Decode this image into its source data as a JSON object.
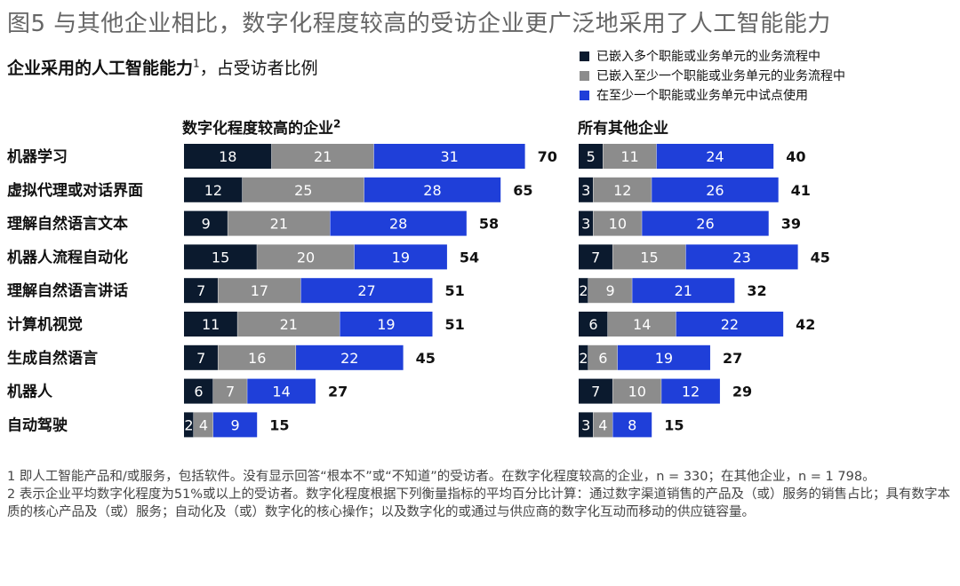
{
  "title": "图5 与其他企业相比，数字化程度较高的受访企业更广泛地采用了人工智能能力",
  "subtitle": {
    "main": "企业采用的人工智能能力",
    "sup": "1",
    "rest": "，占受访者比例"
  },
  "colors": {
    "embedded_multi": "#0b1a2e",
    "embedded_one": "#8c8c8c",
    "pilot": "#1f3fd9"
  },
  "chart_data": {
    "type": "bar",
    "orientation": "horizontal",
    "stacked": true,
    "categories": [
      "机器学习",
      "虚拟代理或对话界面",
      "理解自然语言文本",
      "机器人流程自动化",
      "理解自然语言讲话",
      "计算机视觉",
      "生成自然语言",
      "机器人",
      "自动驾驶"
    ],
    "legend": [
      "已嵌入多个职能或业务单元的业务流程中",
      "已嵌入至少一个职能或业务单元的业务流程中",
      "在至少一个职能或业务单元中试点使用"
    ],
    "panels": [
      {
        "title": "数字化程度较高的企业",
        "title_sup": "2",
        "series": [
          {
            "name": "已嵌入多个职能或业务单元的业务流程中",
            "values": [
              18,
              12,
              9,
              15,
              7,
              11,
              7,
              6,
              2
            ]
          },
          {
            "name": "已嵌入至少一个职能或业务单元的业务流程中",
            "values": [
              21,
              25,
              21,
              20,
              17,
              21,
              16,
              7,
              4
            ]
          },
          {
            "name": "在至少一个职能或业务单元中试点使用",
            "values": [
              31,
              28,
              28,
              19,
              27,
              19,
              22,
              14,
              9
            ]
          }
        ],
        "totals": [
          70,
          65,
          58,
          54,
          51,
          51,
          45,
          27,
          15
        ]
      },
      {
        "title": "所有其他企业",
        "title_sup": "",
        "series": [
          {
            "name": "已嵌入多个职能或业务单元的业务流程中",
            "values": [
              5,
              3,
              3,
              7,
              2,
              6,
              2,
              7,
              3
            ]
          },
          {
            "name": "已嵌入至少一个职能或业务单元的业务流程中",
            "values": [
              11,
              12,
              10,
              15,
              9,
              14,
              6,
              10,
              4
            ]
          },
          {
            "name": "在至少一个职能或业务单元中试点使用",
            "values": [
              24,
              26,
              26,
              23,
              21,
              22,
              19,
              12,
              8
            ]
          }
        ],
        "totals": [
          40,
          41,
          39,
          45,
          32,
          42,
          27,
          29,
          15
        ]
      }
    ]
  },
  "footnotes": [
    "1 即人工智能产品和/或服务，包括软件。没有显示回答“根本不”或“不知道”的受访者。在数字化程度较高的企业，n = 330；在其他企业，n = 1 798。",
    "2 表示企业平均数字化程度为51%或以上的受访者。数字化程度根据下列衡量指标的平均百分比计算：通过数字渠道销售的产品及（或）服务的销售占比；具有数字本质的核心产品及（或）服务；自动化及（或）数字化的核心操作；以及数字化的或通过与供应商的数字化互动而移动的供应链容量。"
  ]
}
